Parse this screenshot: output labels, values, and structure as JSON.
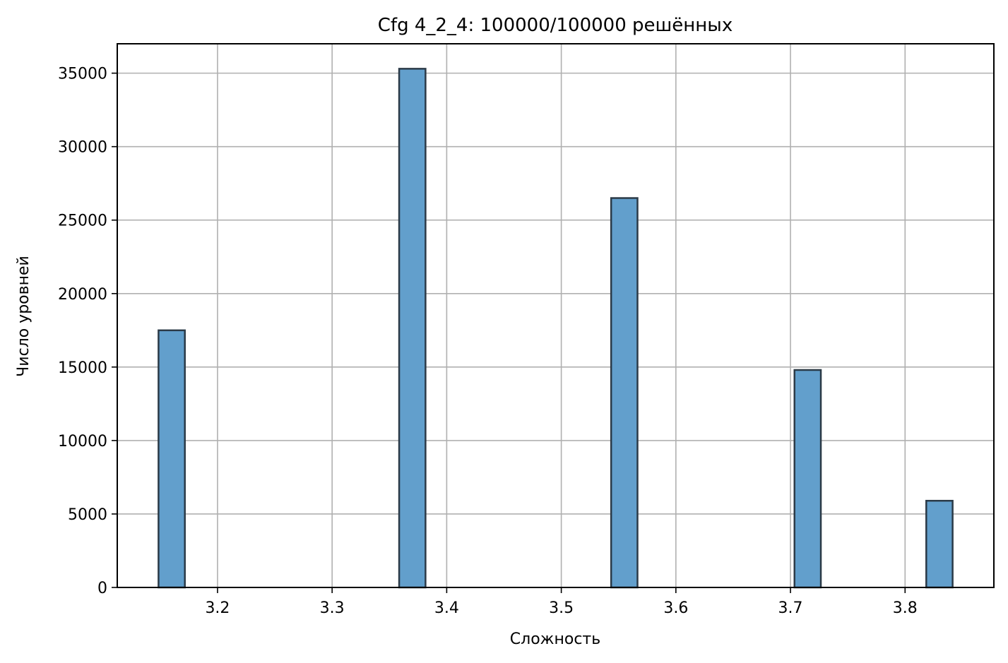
{
  "chart_data": {
    "type": "bar",
    "title": "Cfg 4_2_4: 100000/100000 решённых",
    "xlabel": "Сложность",
    "ylabel": "Число уровней",
    "xlim": [
      3.1125,
      3.8775
    ],
    "ylim": [
      0,
      37000
    ],
    "xticks": [
      3.2,
      3.3,
      3.4,
      3.5,
      3.6,
      3.7,
      3.8
    ],
    "xtick_labels": [
      "3.2",
      "3.3",
      "3.4",
      "3.5",
      "3.6",
      "3.7",
      "3.8"
    ],
    "yticks": [
      0,
      5000,
      10000,
      15000,
      20000,
      25000,
      30000,
      35000
    ],
    "ytick_labels": [
      "0",
      "5000",
      "10000",
      "15000",
      "20000",
      "25000",
      "30000",
      "35000"
    ],
    "bin_width": 0.023,
    "bins": [
      {
        "x": 3.16,
        "count": 17500
      },
      {
        "x": 3.37,
        "count": 35300
      },
      {
        "x": 3.555,
        "count": 26500
      },
      {
        "x": 3.715,
        "count": 14800
      },
      {
        "x": 3.83,
        "count": 5900
      }
    ],
    "grid": true,
    "colors": {
      "bar_fill": "#629fcc",
      "bar_edge": "#2b3a47",
      "grid": "#b0b0b0"
    }
  }
}
